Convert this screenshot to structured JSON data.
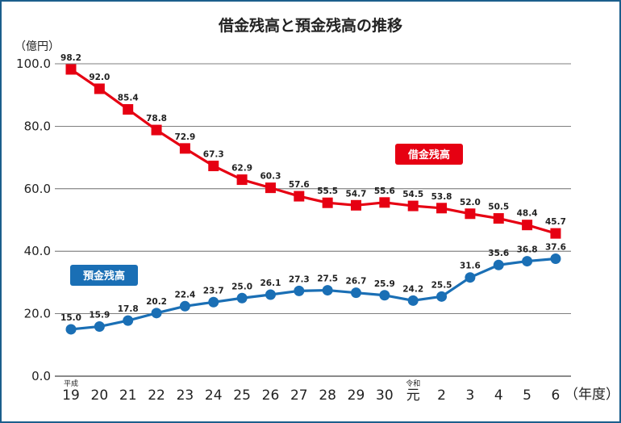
{
  "chart_data": {
    "type": "line",
    "title": "借金残高と預金残高の推移",
    "ylabel": "（億円）",
    "xlabel": "（年度）",
    "ylim": [
      0,
      100
    ],
    "yticks": [
      "0.0",
      "20.0",
      "40.0",
      "60.0",
      "80.0",
      "100.0"
    ],
    "grid": true,
    "categories": [
      "19",
      "20",
      "21",
      "22",
      "23",
      "24",
      "25",
      "26",
      "27",
      "28",
      "29",
      "30",
      "元",
      "2",
      "3",
      "4",
      "5",
      "6"
    ],
    "era_labels": {
      "0": "平成",
      "12": "令和"
    },
    "series": [
      {
        "name": "借金残高",
        "color": "#e60012",
        "marker": "square",
        "values": [
          98.2,
          92.0,
          85.4,
          78.8,
          72.9,
          67.3,
          62.9,
          60.3,
          57.6,
          55.5,
          54.7,
          55.6,
          54.5,
          53.8,
          52.0,
          50.5,
          48.4,
          45.7
        ],
        "labels": [
          "98.2",
          "92.0",
          "85.4",
          "78.8",
          "72.9",
          "67.3",
          "62.9",
          "60.3",
          "57.6",
          "55.5",
          "54.7",
          "55.6",
          "54.5",
          "53.8",
          "52.0",
          "50.5",
          "48.4",
          "45.7"
        ]
      },
      {
        "name": "預金残高",
        "color": "#1a6fb5",
        "marker": "circle",
        "values": [
          15.0,
          15.9,
          17.8,
          20.2,
          22.4,
          23.7,
          25.0,
          26.1,
          27.3,
          27.5,
          26.7,
          25.9,
          24.2,
          25.5,
          31.6,
          35.6,
          36.8,
          37.6
        ],
        "labels": [
          "15.0",
          "15.9",
          "17.8",
          "20.2",
          "22.4",
          "23.7",
          "25.0",
          "26.1",
          "27.3",
          "27.5",
          "26.7",
          "25.9",
          "24.2",
          "25.5",
          "31.6",
          "35.6",
          "36.8",
          "37.6"
        ]
      }
    ]
  }
}
